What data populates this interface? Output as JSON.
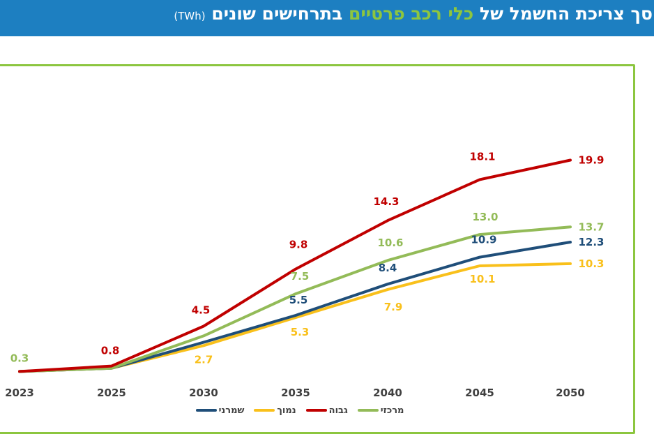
{
  "header": {
    "title_main": "סך צריכת החשמל של",
    "title_highlight": "כלי רכב פרטיים",
    "title_end": "בתרחישים שונים",
    "title_unit": "(TWh)"
  },
  "chart_data": {
    "type": "line",
    "title": "",
    "xlabel": "",
    "ylabel": "",
    "categories": [
      "2023",
      "2025",
      "2030",
      "2035",
      "2040",
      "2045",
      "2050"
    ],
    "x": [
      2023,
      2025,
      2030,
      2035,
      2040,
      2045,
      2050
    ],
    "ylim": [
      0,
      22
    ],
    "grid": false,
    "legend_position": "bottom",
    "series": [
      {
        "name": "מרכזי",
        "color": "#93bb58",
        "values": [
          0.3,
          0.6,
          3.6,
          7.5,
          10.6,
          13.0,
          13.7
        ],
        "labels": {
          "2023": "0.3",
          "2035": "7.5",
          "2040": "10.6",
          "2045": "13.0",
          "2050": "13.7"
        }
      },
      {
        "name": "גבוה",
        "color": "#c00000",
        "values": [
          0.3,
          0.8,
          4.5,
          9.8,
          14.3,
          18.1,
          19.9
        ],
        "labels": {
          "2025": "0.8",
          "2030": "4.5",
          "2035": "9.8",
          "2040": "14.3",
          "2045": "18.1",
          "2050": "19.9"
        }
      },
      {
        "name": "נמוך",
        "color": "#f9c01b",
        "values": [
          0.3,
          0.6,
          2.7,
          5.3,
          7.9,
          10.1,
          10.3
        ],
        "labels": {
          "2030": "2.7",
          "2035": "5.3",
          "2040": "7.9",
          "2045": "10.1",
          "2050": "10.3"
        }
      },
      {
        "name": "שמרני",
        "color": "#1f4e79",
        "values": [
          0.3,
          0.6,
          3.0,
          5.5,
          8.4,
          10.9,
          12.3
        ],
        "labels": {
          "2035": "5.5",
          "2040": "8.4",
          "2045": "10.9",
          "2050": "12.3"
        }
      }
    ],
    "legend_order": [
      "מרכזי",
      "גבוה",
      "נמוך",
      "שמרני"
    ]
  }
}
